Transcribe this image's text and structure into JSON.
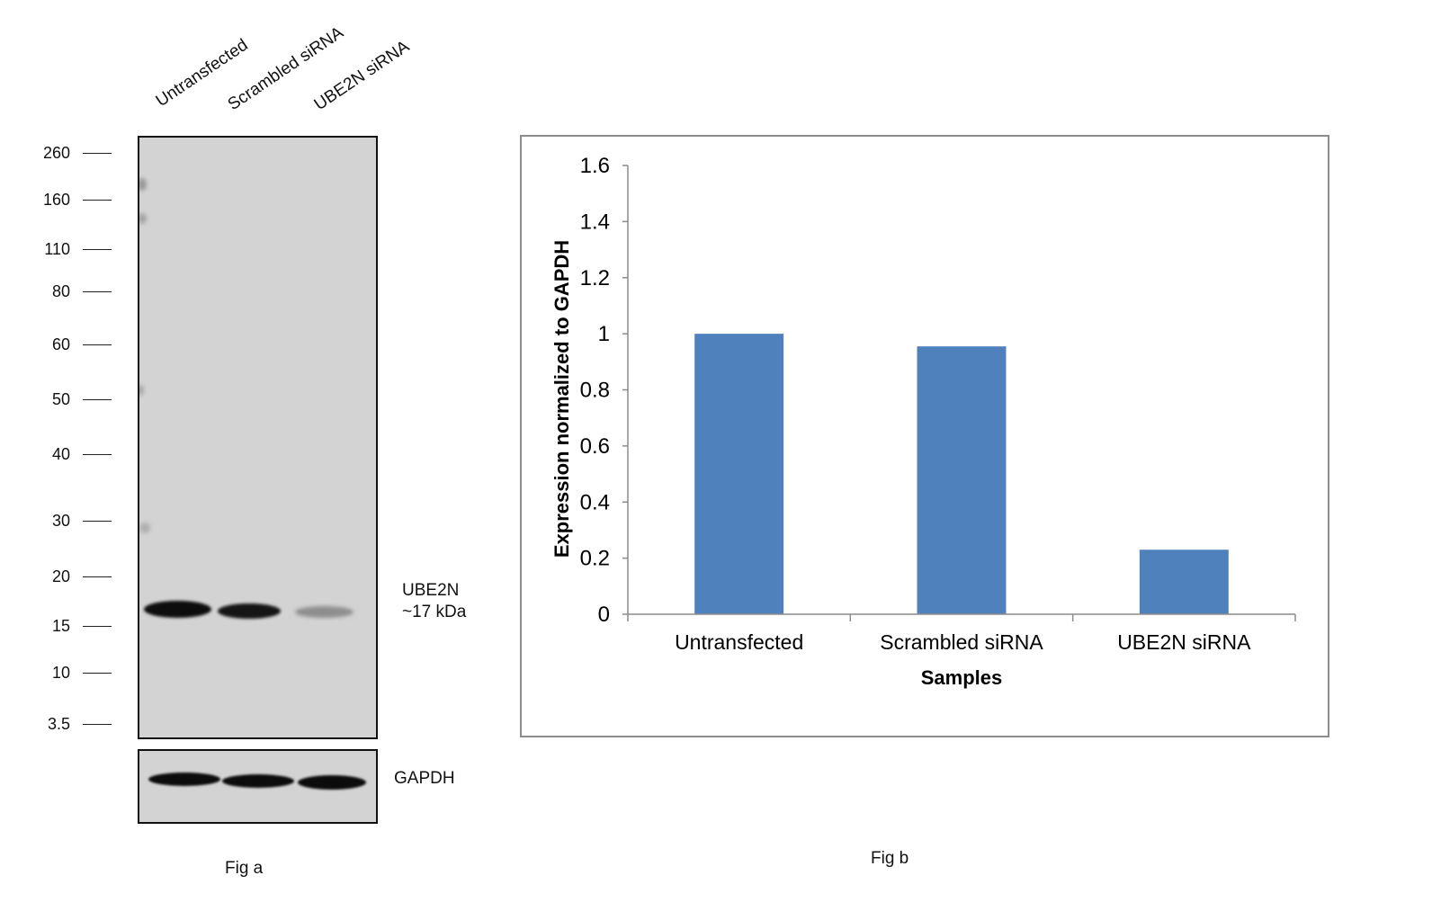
{
  "figure_a": {
    "lanes": [
      "Untransfected",
      "Scrambled siRNA",
      "UBE2N siRNA"
    ],
    "mw_markers": [
      "260",
      "160",
      "110",
      "80",
      "60",
      "50",
      "40",
      "30",
      "20",
      "15",
      "10",
      "3.5"
    ],
    "target_label_line1": "UBE2N",
    "target_label_line2": "~17 kDa",
    "loading_control_label": "GAPDH",
    "caption": "Fig a"
  },
  "figure_b": {
    "caption": "Fig b"
  },
  "chart_data": {
    "type": "bar",
    "categories": [
      "Untransfected",
      "Scrambled siRNA",
      "UBE2N siRNA"
    ],
    "values": [
      1.0,
      0.955,
      0.23
    ],
    "xlabel": "Samples",
    "ylabel": "Expression normalized to GAPDH",
    "ylim": [
      0,
      1.6
    ],
    "yticks": [
      "0",
      "0.2",
      "0.4",
      "0.6",
      "0.8",
      "1",
      "1.2",
      "1.4",
      "1.6"
    ],
    "grid": false,
    "legend": "none",
    "bar_color": "#4f81bd"
  }
}
